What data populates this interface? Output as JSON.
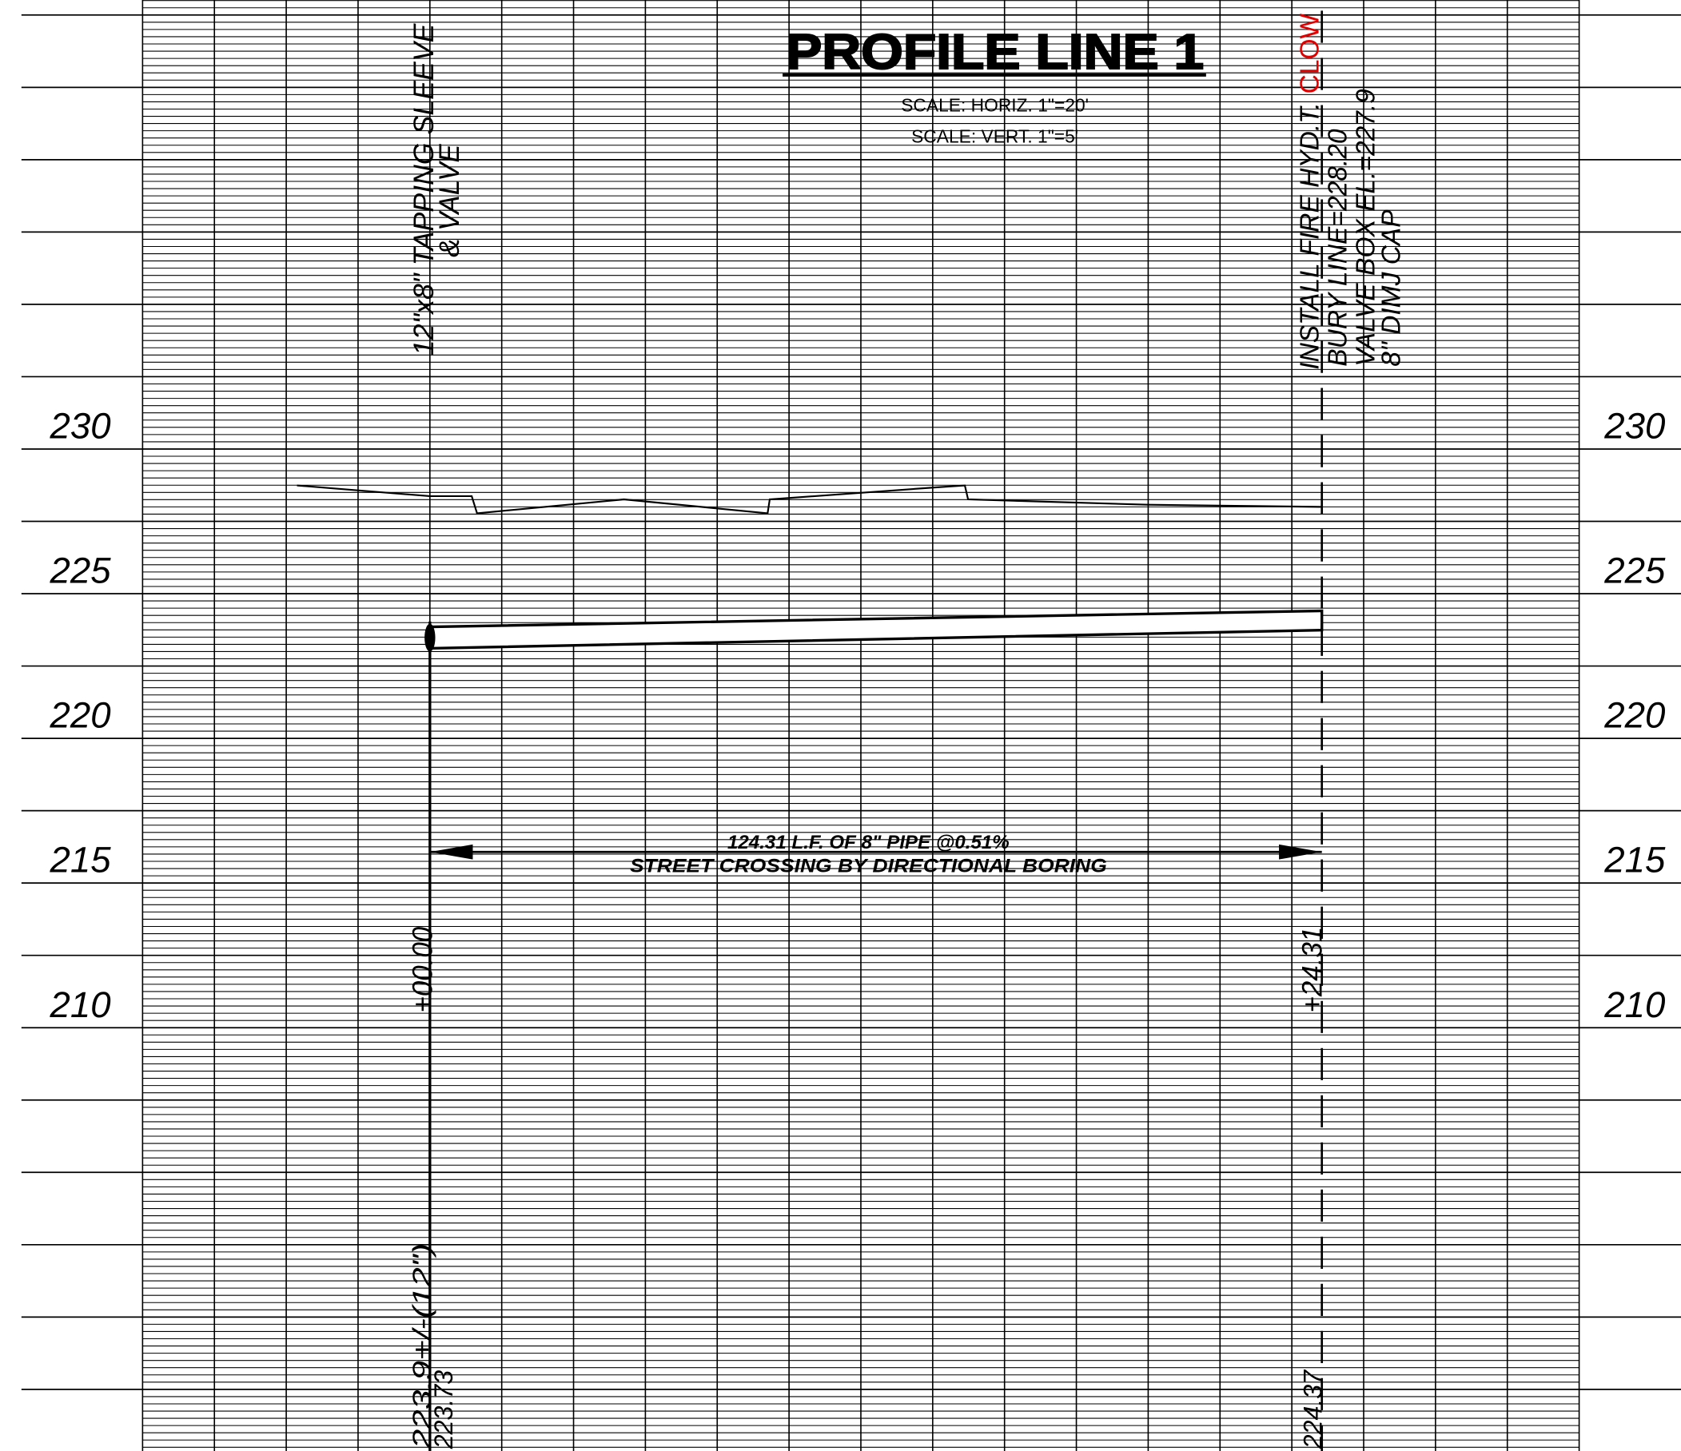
{
  "header": {
    "title": "PROFILE LINE 1",
    "scale": [
      "SCALE: HORIZ. 1\"=20'",
      "SCALE: VERT. 1\"=5'"
    ]
  },
  "elevations": [
    "230",
    "225",
    "220",
    "215",
    "210"
  ],
  "start": {
    "fitting": [
      "12\"x8\" TAPPING SLEEVE",
      "& VALVE"
    ],
    "station": "+00.00",
    "elevation": [
      "223.9+/-(12\")",
      "223.73"
    ]
  },
  "end": {
    "hydrant": [
      "INSTALL FIRE HYD.T.",
      "CLOW"
    ],
    "notes": [
      "BURY LINE=228.20",
      "VALVE BOX EL.=227.9",
      "8\" DIMJ CAP"
    ],
    "station": "+24.31",
    "elevation": "224.37"
  },
  "pipe": [
    "124.31 L.F. OF 8\" PIPE @0.51%",
    "STREET CROSSING BY DIRECTIONAL BORING"
  ]
}
